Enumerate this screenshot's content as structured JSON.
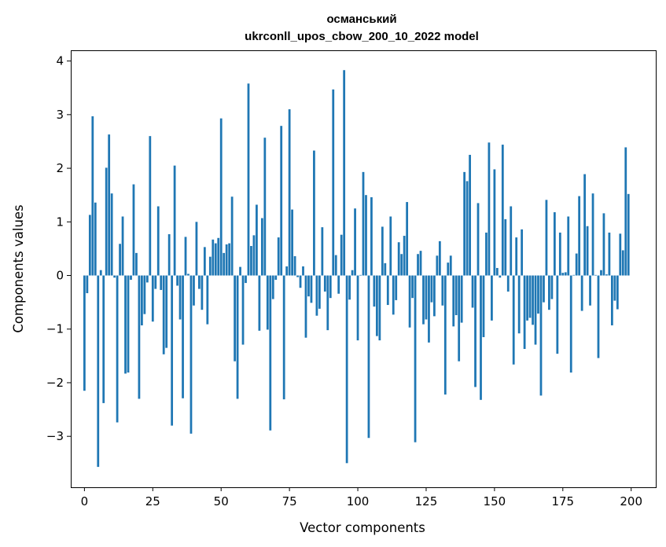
{
  "chart_data": {
    "type": "bar",
    "title_line1": "османський",
    "title_line2": "ukrconll_upos_cbow_200_10_2022 model",
    "xlabel": "Vector components",
    "ylabel": "Components values",
    "xlim": [
      -5,
      209
    ],
    "ylim": [
      -3.95,
      4.2
    ],
    "xticks": [
      0,
      25,
      50,
      75,
      100,
      125,
      150,
      175,
      200
    ],
    "yticks": [
      -3,
      -2,
      -1,
      0,
      1,
      2,
      3,
      4
    ],
    "ytick_labels": [
      "−3",
      "−2",
      "−1",
      "0",
      "1",
      "2",
      "3",
      "4"
    ],
    "bar_color": "#1f77b4",
    "values": [
      -2.15,
      -0.33,
      1.13,
      2.97,
      1.36,
      -3.57,
      0.1,
      -2.38,
      2.01,
      2.63,
      1.53,
      -0.04,
      -2.74,
      0.59,
      1.1,
      -1.83,
      -1.81,
      -0.08,
      1.7,
      0.42,
      -2.3,
      -0.93,
      -0.72,
      -0.13,
      2.6,
      -0.86,
      -0.25,
      1.29,
      -0.27,
      -1.47,
      -1.35,
      0.77,
      -2.8,
      2.05,
      -0.19,
      -0.82,
      -2.29,
      0.72,
      0.03,
      -2.95,
      -0.56,
      1.0,
      -0.25,
      -0.64,
      0.53,
      -0.91,
      0.35,
      0.67,
      0.6,
      0.7,
      2.93,
      0.42,
      0.58,
      0.6,
      1.47,
      -1.6,
      -2.3,
      0.16,
      -1.29,
      -0.14,
      3.58,
      0.55,
      0.75,
      1.32,
      -1.03,
      1.07,
      2.57,
      -1.01,
      -2.89,
      -0.44,
      -0.08,
      0.71,
      2.79,
      -2.31,
      0.17,
      3.1,
      1.23,
      0.36,
      -0.03,
      -0.23,
      0.17,
      -1.16,
      -0.39,
      -0.51,
      2.33,
      -0.75,
      -0.62,
      0.9,
      -0.3,
      -1.02,
      -0.42,
      3.47,
      0.38,
      -0.34,
      0.76,
      3.83,
      -3.5,
      -0.45,
      0.1,
      1.25,
      -1.21,
      0.01,
      1.93,
      1.5,
      -3.03,
      1.46,
      -0.58,
      -1.13,
      -1.21,
      0.91,
      0.23,
      -0.55,
      1.1,
      -0.73,
      -0.46,
      0.62,
      0.4,
      0.74,
      1.37,
      -0.97,
      -0.42,
      -3.11,
      0.4,
      0.46,
      -0.91,
      -0.82,
      -1.25,
      -0.5,
      -0.76,
      0.37,
      0.64,
      -0.56,
      -2.22,
      0.24,
      0.37,
      -0.95,
      -0.74,
      -1.6,
      -0.88,
      1.93,
      1.76,
      2.25,
      -0.6,
      -2.08,
      1.35,
      -2.32,
      -1.15,
      0.8,
      2.48,
      -0.84,
      1.98,
      0.14,
      -0.04,
      2.44,
      1.05,
      -0.3,
      1.29,
      -1.66,
      0.71,
      -1.08,
      0.86,
      -1.37,
      -0.84,
      -0.79,
      -0.92,
      -1.29,
      -0.71,
      -2.24,
      -0.5,
      1.41,
      -0.64,
      -0.44,
      1.18,
      -1.46,
      0.8,
      0.05,
      0.06,
      1.1,
      -1.81,
      0.01,
      0.41,
      1.48,
      -0.66,
      1.89,
      0.92,
      -0.56,
      1.53,
      0.01,
      -1.54,
      0.1,
      1.16,
      0.02,
      0.8,
      -0.93,
      -0.47,
      -0.63,
      0.78,
      0.47,
      2.39,
      1.52
    ]
  }
}
